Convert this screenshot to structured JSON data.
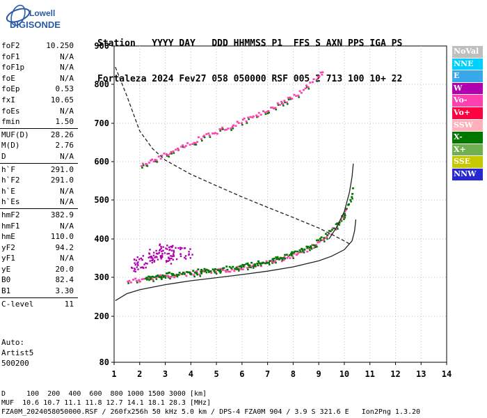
{
  "logo": {
    "line1": "Lowell",
    "line2": "DIGISONDE"
  },
  "header": {
    "row1": "Station   YYYY DAY   DDD HHMMSS P1  FFS S AXN PPS IGA PS",
    "row2": "Fortaleza 2024 Fev27 058 050000 RSF 005 2 713 100 10+ 22"
  },
  "params": [
    [
      {
        "label": "foF2",
        "value": "10.250"
      },
      {
        "label": "foF1",
        "value": "N/A"
      },
      {
        "label": "foF1p",
        "value": "N/A"
      },
      {
        "label": "foE",
        "value": "N/A"
      },
      {
        "label": "foEp",
        "value": "0.53"
      },
      {
        "label": "fxI",
        "value": "10.65"
      },
      {
        "label": "foEs",
        "value": "N/A"
      },
      {
        "label": "fmin",
        "value": "1.50"
      }
    ],
    [
      {
        "label": "MUF(D)",
        "value": "28.26"
      },
      {
        "label": "M(D)",
        "value": "2.76"
      },
      {
        "label": "D",
        "value": "N/A"
      }
    ],
    [
      {
        "label": "h`F",
        "value": "291.0"
      },
      {
        "label": "h`F2",
        "value": "291.0"
      },
      {
        "label": "h`E",
        "value": "N/A"
      },
      {
        "label": "h`Es",
        "value": "N/A"
      }
    ],
    [
      {
        "label": "hmF2",
        "value": "382.9"
      },
      {
        "label": "hmF1",
        "value": "N/A"
      },
      {
        "label": "hmE",
        "value": "110.0"
      },
      {
        "label": "yF2",
        "value": "94.2"
      },
      {
        "label": "yF1",
        "value": "N/A"
      },
      {
        "label": "yE",
        "value": "20.0"
      },
      {
        "label": "B0",
        "value": "82.4"
      },
      {
        "label": "B1",
        "value": "3.30"
      }
    ],
    [
      {
        "label": "C-level",
        "value": "11"
      }
    ]
  ],
  "auto": {
    "line1": "Auto:",
    "line2": "Artist5",
    "line3": "500200"
  },
  "legend": [
    {
      "label": "NoVal",
      "color": "#c0c0c0"
    },
    {
      "label": "NNE",
      "color": "#00d0ff"
    },
    {
      "label": "E",
      "color": "#38a8e8"
    },
    {
      "label": "W",
      "color": "#b000b0"
    },
    {
      "label": "Vo-",
      "color": "#ff40b0"
    },
    {
      "label": "Vo+",
      "color": "#ff0040"
    },
    {
      "label": "SSW",
      "color": "#ffb0b8"
    },
    {
      "label": "X-",
      "color": "#007800"
    },
    {
      "label": "X+",
      "color": "#70b050"
    },
    {
      "label": "SSE",
      "color": "#c8c800"
    },
    {
      "label": "NNW",
      "color": "#2828d0"
    }
  ],
  "footer": {
    "line1": "D     100  200  400  600  800 1000 1500 3000 [km]",
    "line2": "MUF  10.6 10.7 11.1 11.8 12.7 14.1 18.1 28.3 [MHz]",
    "line3": "FZA0M_2024058050000.RSF / 260fx256h 50 kHz 5.0 km / DPS-4 FZA0M 904 / 3.9 S 321.6 E   Ion2Png 1.3.20"
  },
  "chart_data": {
    "type": "scatter",
    "xlim": [
      1,
      14
    ],
    "ylim": [
      80,
      900
    ],
    "xticks": [
      1,
      2,
      3,
      4,
      5,
      6,
      7,
      8,
      9,
      10,
      11,
      12,
      13,
      14
    ],
    "yticks": [
      80,
      200,
      300,
      400,
      500,
      600,
      700,
      800,
      900
    ],
    "ytick_labels": [
      "80",
      "200",
      "300",
      "400",
      "500",
      "600",
      "700",
      "800",
      "900"
    ],
    "grid": "dotted",
    "series": [
      {
        "trace": "o-trace",
        "color": "#ff40b0",
        "points": [
          [
            1.5,
            292
          ],
          [
            2,
            296
          ],
          [
            2.5,
            301
          ],
          [
            3,
            305
          ],
          [
            3.5,
            308
          ],
          [
            4,
            312
          ],
          [
            4.5,
            315
          ],
          [
            5,
            318
          ],
          [
            5.5,
            322
          ],
          [
            6,
            327
          ],
          [
            6.5,
            333
          ],
          [
            7,
            340
          ],
          [
            7.5,
            349
          ],
          [
            8,
            360
          ],
          [
            8.5,
            374
          ],
          [
            9,
            392
          ],
          [
            9.3,
            408
          ],
          [
            9.6,
            430
          ],
          [
            9.9,
            458
          ],
          [
            10.1,
            480
          ]
        ]
      },
      {
        "trace": "x-trace",
        "color": "#007800",
        "points": [
          [
            2.2,
            299
          ],
          [
            3,
            308
          ],
          [
            4,
            316
          ],
          [
            5,
            322
          ],
          [
            6,
            331
          ],
          [
            7,
            345
          ],
          [
            7.6,
            356
          ],
          [
            8.2,
            370
          ],
          [
            8.8,
            390
          ],
          [
            9.3,
            415
          ],
          [
            9.7,
            442
          ],
          [
            10,
            470
          ],
          [
            10.2,
            500
          ],
          [
            10.35,
            540
          ]
        ]
      },
      {
        "trace": "f2-multi-hop",
        "color": "#ff40b0",
        "points": [
          [
            2.05,
            592
          ],
          [
            2.5,
            605
          ],
          [
            3,
            622
          ],
          [
            3.5,
            638
          ],
          [
            4,
            652
          ],
          [
            4.5,
            667
          ],
          [
            5,
            680
          ],
          [
            5.5,
            694
          ],
          [
            6,
            708
          ],
          [
            6.5,
            722
          ],
          [
            7,
            737
          ],
          [
            7.5,
            753
          ],
          [
            8,
            772
          ],
          [
            8.5,
            795
          ],
          [
            9,
            825
          ],
          [
            9.15,
            840
          ]
        ]
      },
      {
        "trace": "spread-w",
        "color": "#b000b0",
        "points": [
          [
            2,
            340
          ],
          [
            2.3,
            352
          ],
          [
            2.6,
            360
          ],
          [
            3,
            368
          ],
          [
            3.4,
            372
          ],
          [
            3.8,
            365
          ],
          [
            1.9,
            330
          ],
          [
            2.8,
            376
          ],
          [
            3.2,
            349
          ]
        ]
      }
    ],
    "curves": [
      {
        "name": "true-height-profile",
        "style": "solid",
        "points": [
          [
            1.05,
            240
          ],
          [
            1.5,
            258
          ],
          [
            2,
            268
          ],
          [
            3,
            281
          ],
          [
            4,
            291
          ],
          [
            5,
            299
          ],
          [
            6,
            307
          ],
          [
            7,
            316
          ],
          [
            8,
            327
          ],
          [
            9,
            343
          ],
          [
            9.5,
            355
          ],
          [
            10,
            372
          ],
          [
            10.3,
            395
          ],
          [
            10.4,
            420
          ],
          [
            10.45,
            450
          ]
        ]
      },
      {
        "name": "upper-profile",
        "style": "solid",
        "points": [
          [
            9.4,
            400
          ],
          [
            9.7,
            430
          ],
          [
            10,
            470
          ],
          [
            10.2,
            520
          ],
          [
            10.3,
            560
          ],
          [
            10.35,
            595
          ]
        ]
      },
      {
        "name": "muf-curve",
        "style": "dashed",
        "points": [
          [
            1.05,
            845
          ],
          [
            1.5,
            770
          ],
          [
            2,
            680
          ],
          [
            2.5,
            634
          ],
          [
            3,
            604
          ],
          [
            4,
            567
          ],
          [
            5,
            537
          ],
          [
            6,
            508
          ],
          [
            7,
            481
          ],
          [
            8,
            455
          ],
          [
            9,
            428
          ],
          [
            9.5,
            412
          ],
          [
            10,
            395
          ],
          [
            10.2,
            387
          ]
        ]
      }
    ]
  }
}
